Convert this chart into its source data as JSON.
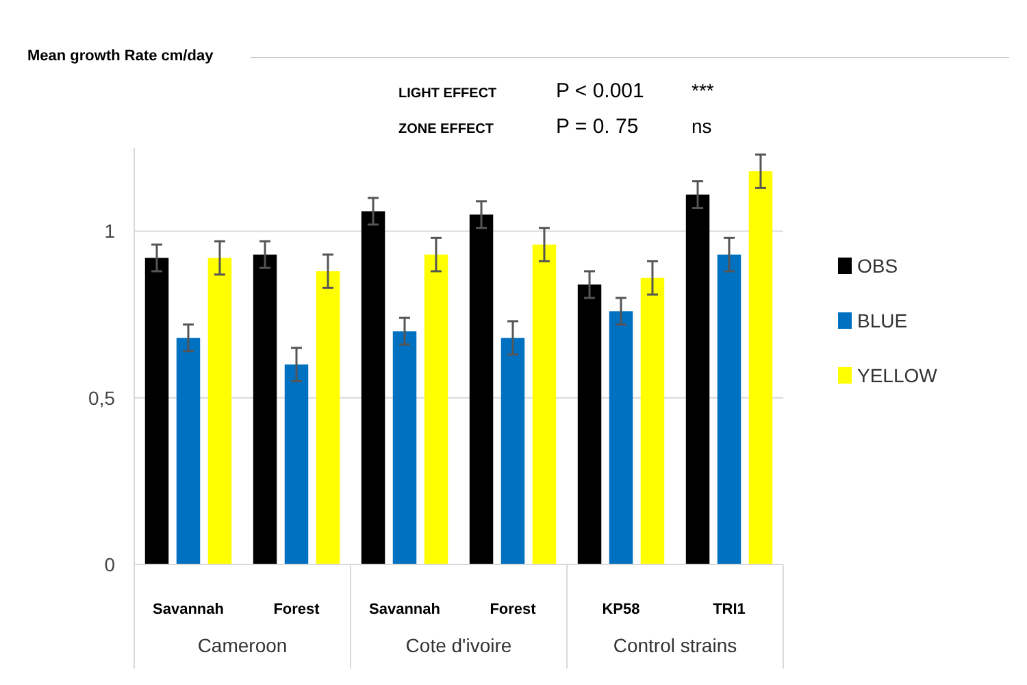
{
  "chart_data": {
    "type": "bar",
    "title": "Mean growth Rate cm/day",
    "categories": [
      "Savannah",
      "Forest",
      "Savannah",
      "Forest",
      "KP58",
      "TRI1"
    ],
    "annotations": [
      "LIGHT EFFECT",
      "P < 0.001",
      "***",
      "ZONE EFFECT",
      "P = 0. 75",
      "ns",
      "Cameroon",
      "Cote d'ivoire",
      "Control strains"
    ],
    "series": [
      {
        "name": "OBS",
        "color": "#000000",
        "values": [
          0.92,
          0.93,
          1.06,
          1.05,
          0.84,
          1.11
        ],
        "errors": [
          0.04,
          0.04,
          0.04,
          0.04,
          0.04,
          0.04
        ]
      },
      {
        "name": "BLUE",
        "color": "#0070c0",
        "values": [
          0.68,
          0.6,
          0.7,
          0.68,
          0.76,
          0.93
        ],
        "errors": [
          0.04,
          0.05,
          0.04,
          0.05,
          0.04,
          0.05
        ]
      },
      {
        "name": "YELLOW",
        "color": "#ffff00",
        "values": [
          0.92,
          0.88,
          0.93,
          0.96,
          0.86,
          1.18
        ],
        "errors": [
          0.05,
          0.05,
          0.05,
          0.05,
          0.05,
          0.05
        ]
      }
    ],
    "ylim": [
      0,
      1.25
    ],
    "yticks": [
      0,
      {
        "value": 0.5,
        "label": "0,5"
      },
      1
    ],
    "grid": "y",
    "legend": "right"
  }
}
